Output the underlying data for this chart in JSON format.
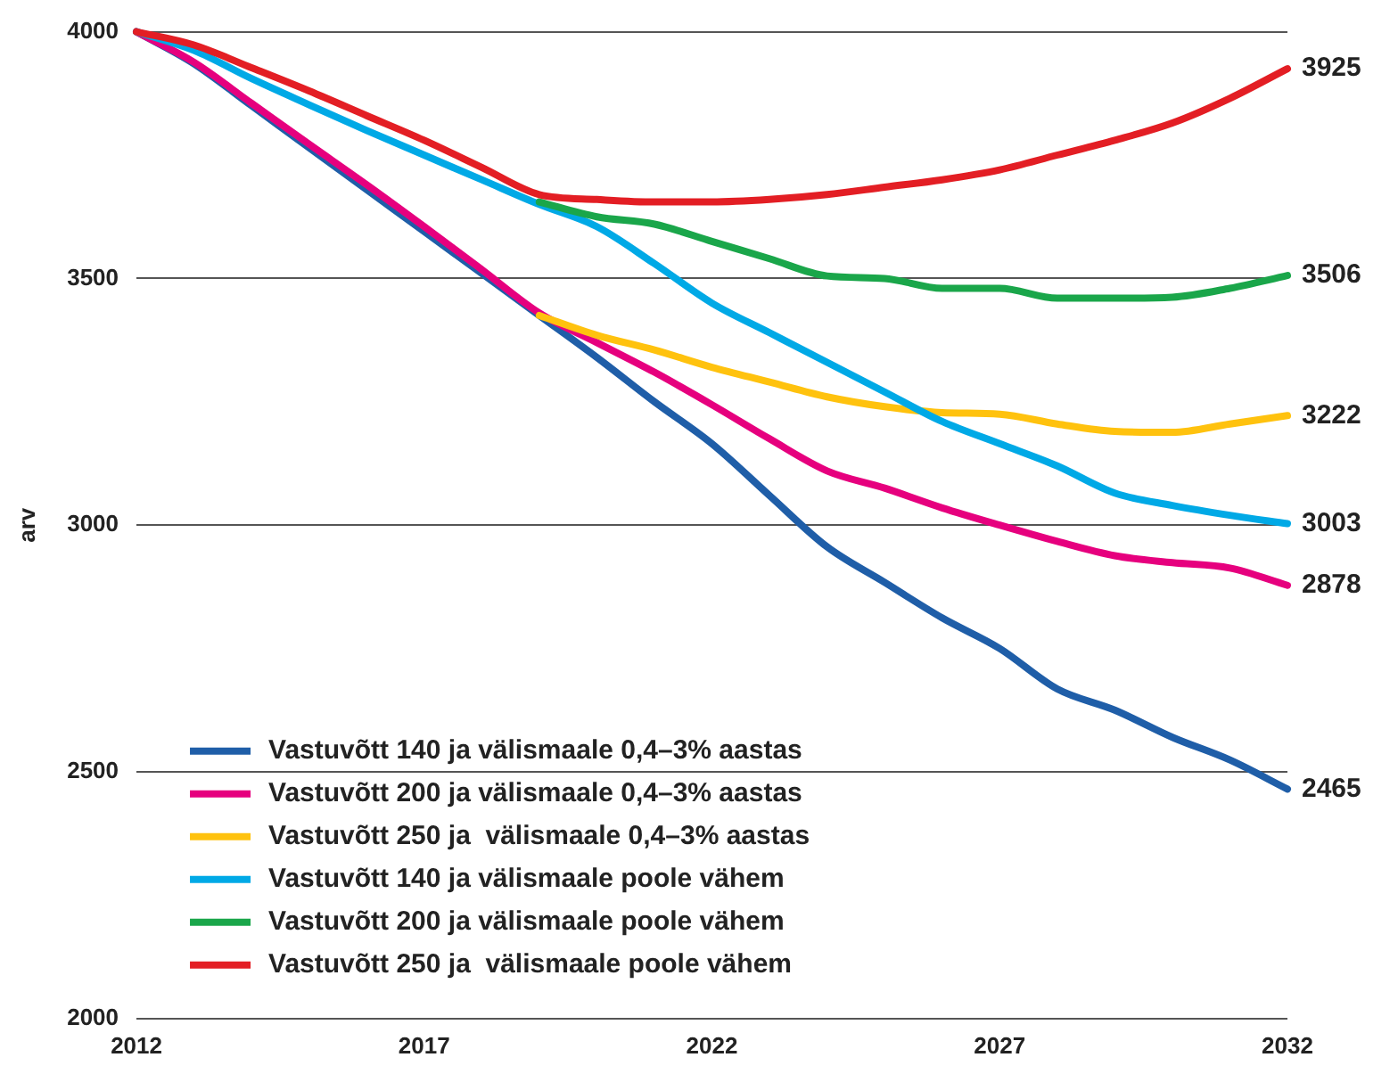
{
  "chart_data": {
    "type": "line",
    "ylabel": "arv",
    "x": [
      2012,
      2013,
      2014,
      2015,
      2016,
      2017,
      2018,
      2019,
      2020,
      2021,
      2022,
      2023,
      2024,
      2025,
      2026,
      2027,
      2028,
      2029,
      2030,
      2031,
      2032
    ],
    "xlim": [
      2012,
      2032
    ],
    "xticks": [
      2012,
      2017,
      2022,
      2027,
      2032
    ],
    "ylim": [
      2000,
      4000
    ],
    "yticks": [
      2000,
      2500,
      3000,
      3500,
      4000
    ],
    "grid": "y",
    "legend": "bottom left",
    "marker": "none",
    "line_style": "solid",
    "series": [
      {
        "name": "Vastuvõtt 140 ja välismaale 0,4–3% aastas",
        "color": "#1f5ea8",
        "values": [
          4000,
          3935,
          3850,
          3765,
          3680,
          3595,
          3510,
          3425,
          3340,
          3250,
          3165,
          3060,
          2956,
          2884,
          2812,
          2750,
          2668,
          2625,
          2570,
          2524,
          2465
        ],
        "value_labels": [
          null,
          null,
          null,
          null,
          null,
          null,
          null,
          null,
          null,
          null,
          null,
          null,
          null,
          null,
          null,
          null,
          null,
          null,
          null,
          null,
          "2465"
        ]
      },
      {
        "name": "Vastuvõtt 200 ja välismaale 0,4–3% aastas",
        "color": "#e6007e",
        "values": [
          4000,
          3938,
          3855,
          3772,
          3690,
          3605,
          3518,
          3430,
          3370,
          3310,
          3244,
          3175,
          3110,
          3075,
          3035,
          3000,
          2967,
          2938,
          2924,
          2913,
          2878
        ],
        "value_labels": [
          null,
          null,
          null,
          null,
          null,
          null,
          null,
          null,
          null,
          null,
          null,
          null,
          null,
          null,
          null,
          null,
          null,
          null,
          null,
          null,
          "2878"
        ]
      },
      {
        "name": "Vastuvõtt 250 ja  välismaale 0,4–3% aastas",
        "color": "#ffc20e",
        "values": [
          null,
          null,
          null,
          null,
          null,
          null,
          null,
          3425,
          3385,
          3355,
          3320,
          3290,
          3260,
          3240,
          3228,
          3225,
          3205,
          3190,
          3188,
          3205,
          3222
        ],
        "value_labels": [
          null,
          null,
          null,
          null,
          null,
          null,
          null,
          null,
          null,
          null,
          null,
          null,
          null,
          null,
          null,
          null,
          null,
          null,
          null,
          null,
          "3222"
        ]
      },
      {
        "name": "Vastuvõtt 140 ja välismaale poole vähem",
        "color": "#00a9e6",
        "values": [
          4000,
          3962,
          3905,
          3852,
          3800,
          3750,
          3700,
          3650,
          3605,
          3530,
          3450,
          3390,
          3330,
          3270,
          3210,
          3165,
          3120,
          3065,
          3040,
          3020,
          3003
        ],
        "value_labels": [
          null,
          null,
          null,
          null,
          null,
          null,
          null,
          null,
          null,
          null,
          null,
          null,
          null,
          null,
          null,
          null,
          null,
          null,
          null,
          null,
          "3003"
        ]
      },
      {
        "name": "Vastuvõtt 200 ja välismaale poole vähem",
        "color": "#1aa64a",
        "values": [
          null,
          null,
          null,
          null,
          null,
          null,
          null,
          3655,
          3625,
          3610,
          3575,
          3540,
          3505,
          3500,
          3480,
          3480,
          3460,
          3460,
          3462,
          3480,
          3506
        ],
        "value_labels": [
          null,
          null,
          null,
          null,
          null,
          null,
          null,
          null,
          null,
          null,
          null,
          null,
          null,
          null,
          null,
          null,
          null,
          null,
          null,
          null,
          "3506"
        ]
      },
      {
        "name": "Vastuvõtt 250 ja  välismaale poole vähem",
        "color": "#e31e24",
        "values": [
          4000,
          3973,
          3927,
          3880,
          3830,
          3780,
          3725,
          3670,
          3660,
          3655,
          3655,
          3660,
          3670,
          3685,
          3700,
          3720,
          3750,
          3780,
          3815,
          3865,
          3925
        ],
        "value_labels": [
          null,
          null,
          null,
          null,
          null,
          null,
          null,
          null,
          null,
          null,
          null,
          null,
          null,
          null,
          null,
          null,
          null,
          null,
          null,
          null,
          "3925"
        ]
      }
    ]
  }
}
